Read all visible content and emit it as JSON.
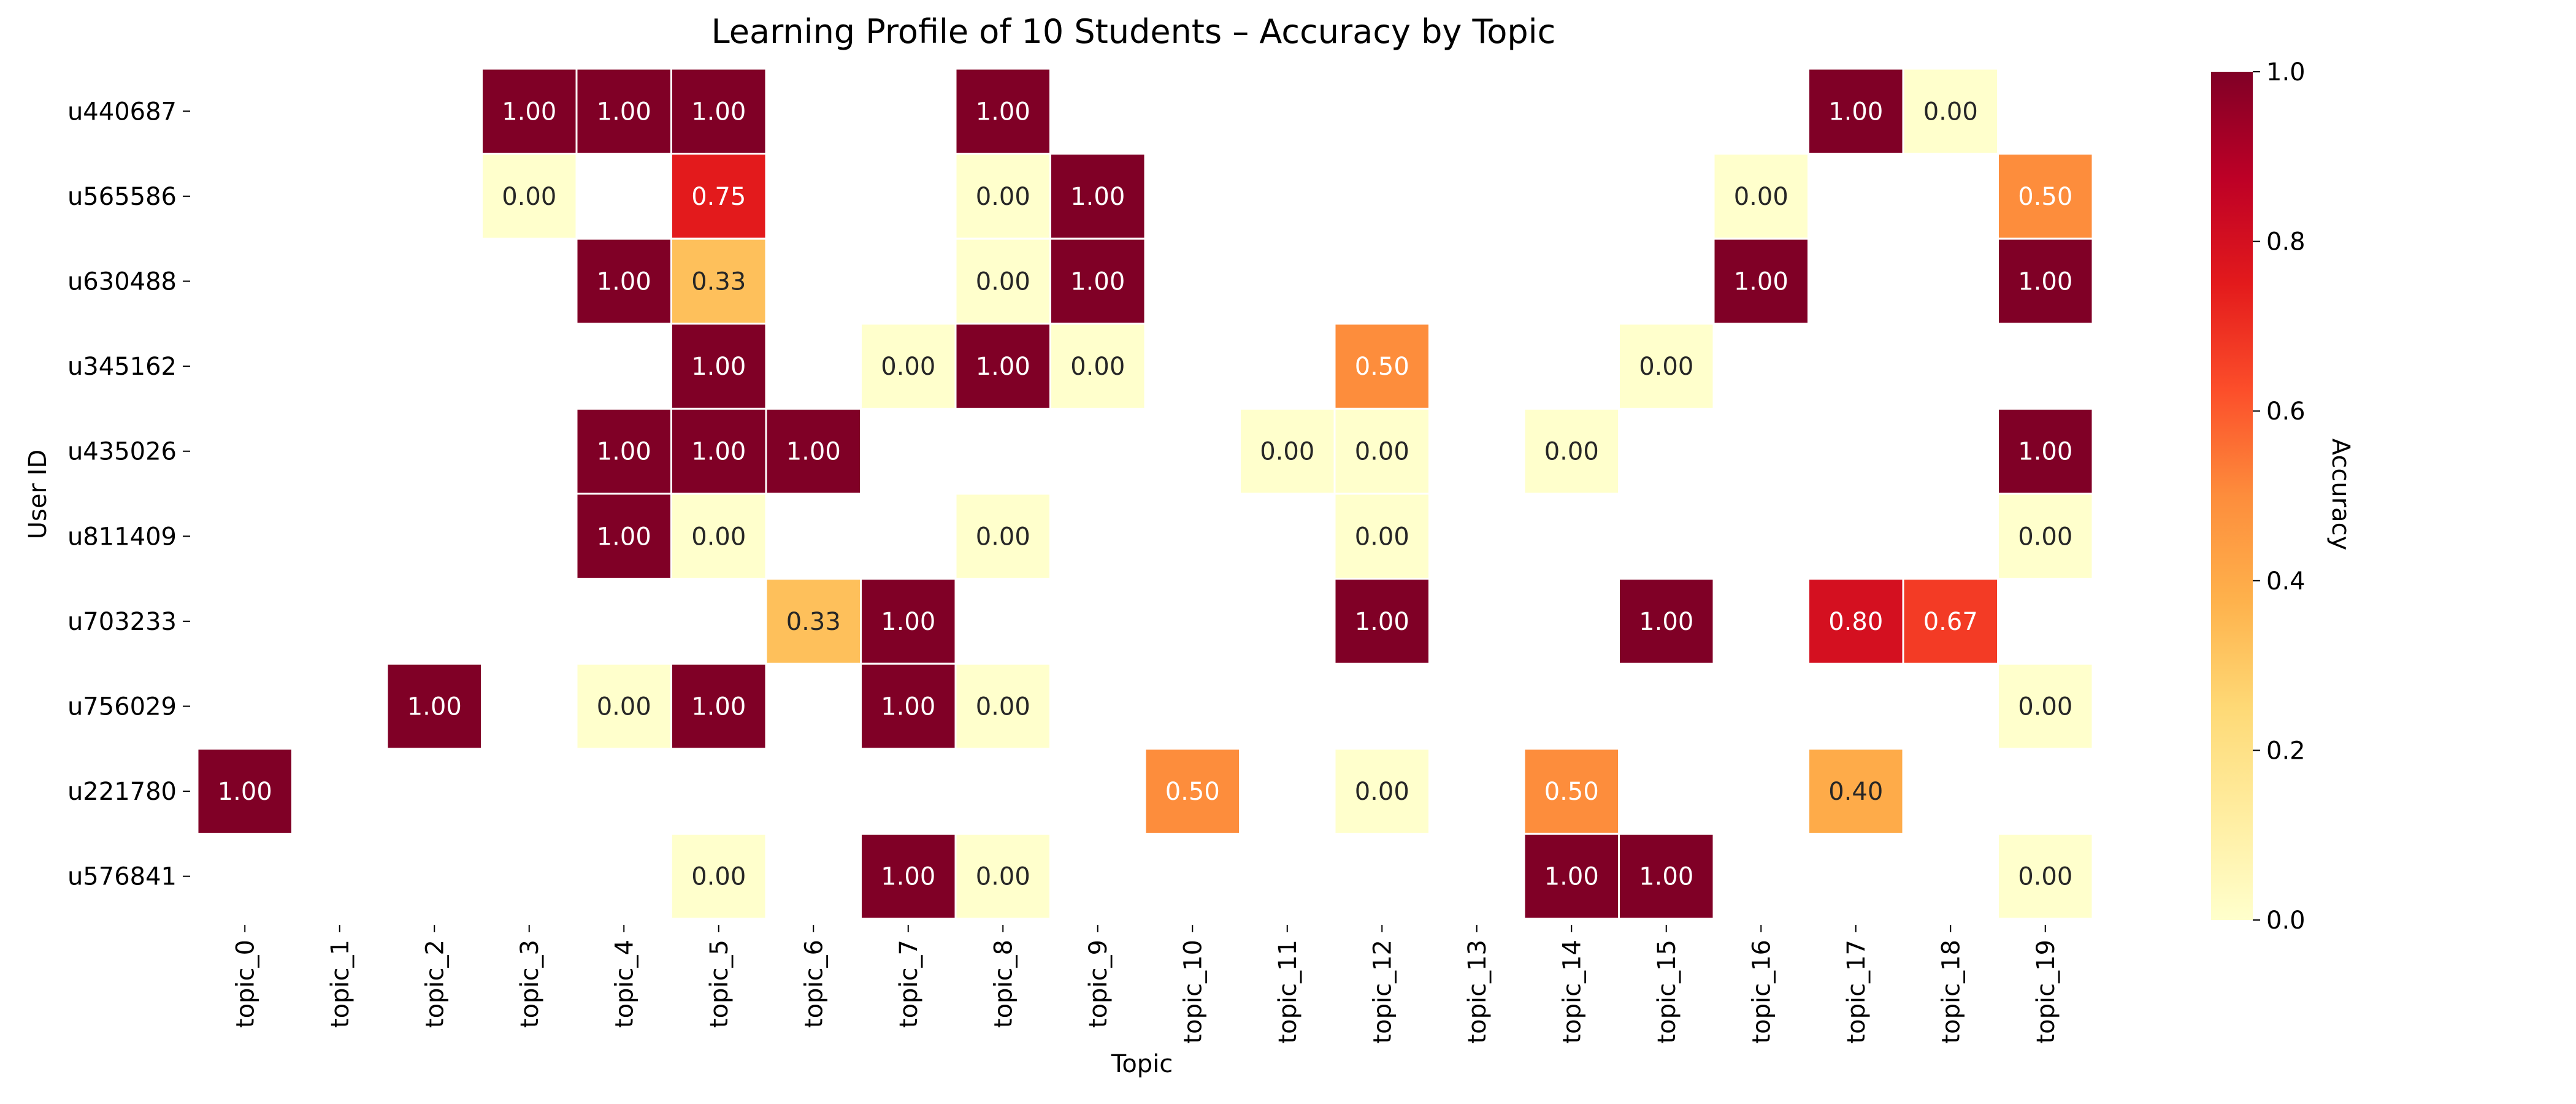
{
  "chart_data": {
    "type": "heatmap",
    "title": "Learning Profile of 10 Students – Accuracy by Topic",
    "xlabel": "Topic",
    "ylabel": "User ID",
    "x_categories": [
      "topic_0",
      "topic_1",
      "topic_2",
      "topic_3",
      "topic_4",
      "topic_5",
      "topic_6",
      "topic_7",
      "topic_8",
      "topic_9",
      "topic_10",
      "topic_11",
      "topic_12",
      "topic_13",
      "topic_14",
      "topic_15",
      "topic_16",
      "topic_17",
      "topic_18",
      "topic_19"
    ],
    "y_categories": [
      "u440687",
      "u565586",
      "u630488",
      "u345162",
      "u435026",
      "u811409",
      "u703233",
      "u756029",
      "u221780",
      "u576841"
    ],
    "values": [
      [
        null,
        null,
        null,
        1.0,
        1.0,
        1.0,
        null,
        null,
        1.0,
        null,
        null,
        null,
        null,
        null,
        null,
        null,
        null,
        1.0,
        0.0,
        null
      ],
      [
        null,
        null,
        null,
        0.0,
        null,
        0.75,
        null,
        null,
        0.0,
        1.0,
        null,
        null,
        null,
        null,
        null,
        null,
        0.0,
        null,
        null,
        0.5
      ],
      [
        null,
        null,
        null,
        null,
        1.0,
        0.33,
        null,
        null,
        0.0,
        1.0,
        null,
        null,
        null,
        null,
        null,
        null,
        1.0,
        null,
        null,
        1.0
      ],
      [
        null,
        null,
        null,
        null,
        null,
        1.0,
        null,
        0.0,
        1.0,
        0.0,
        null,
        null,
        0.5,
        null,
        null,
        0.0,
        null,
        null,
        null,
        null
      ],
      [
        null,
        null,
        null,
        null,
        1.0,
        1.0,
        1.0,
        null,
        null,
        null,
        null,
        0.0,
        0.0,
        null,
        0.0,
        null,
        null,
        null,
        null,
        1.0
      ],
      [
        null,
        null,
        null,
        null,
        1.0,
        0.0,
        null,
        null,
        0.0,
        null,
        null,
        null,
        0.0,
        null,
        null,
        null,
        null,
        null,
        null,
        0.0
      ],
      [
        null,
        null,
        null,
        null,
        null,
        null,
        0.33,
        1.0,
        null,
        null,
        null,
        null,
        1.0,
        null,
        null,
        1.0,
        null,
        0.8,
        0.67,
        null
      ],
      [
        null,
        null,
        1.0,
        null,
        0.0,
        1.0,
        null,
        1.0,
        0.0,
        null,
        null,
        null,
        null,
        null,
        null,
        null,
        null,
        null,
        null,
        0.0
      ],
      [
        1.0,
        null,
        null,
        null,
        null,
        null,
        null,
        null,
        null,
        null,
        0.5,
        null,
        0.0,
        null,
        0.5,
        null,
        null,
        0.4,
        null,
        null
      ],
      [
        null,
        null,
        null,
        null,
        null,
        0.0,
        null,
        1.0,
        0.0,
        null,
        null,
        null,
        null,
        null,
        1.0,
        1.0,
        null,
        null,
        null,
        0.0
      ]
    ],
    "colorbar": {
      "label": "Accuracy",
      "range": [
        0.0,
        1.0
      ],
      "ticks": [
        "0.0",
        "0.2",
        "0.4",
        "0.6",
        "0.8",
        "1.0"
      ],
      "colormap": "YlOrRd",
      "colors": [
        "#ffffcc",
        "#ffeda0",
        "#fed976",
        "#feb24c",
        "#fd8d3c",
        "#fc4e2a",
        "#e31a1c",
        "#bd0026",
        "#800026"
      ]
    },
    "value_format": "2 decimals",
    "grid": false
  }
}
